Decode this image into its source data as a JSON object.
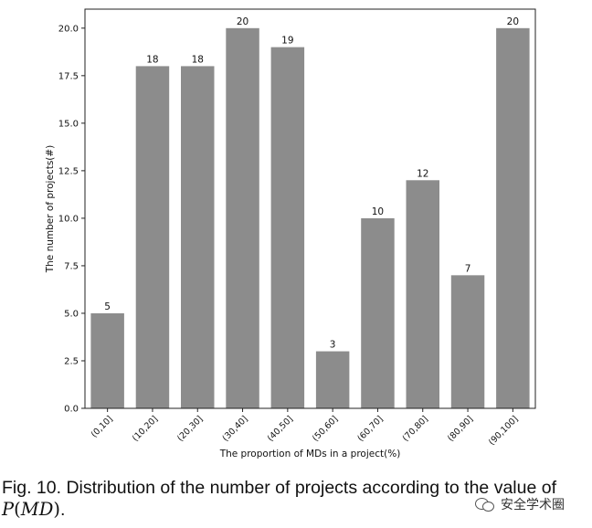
{
  "chart_data": {
    "type": "bar",
    "categories": [
      "(0,10]",
      "(10,20]",
      "(20,30]",
      "(30,40]",
      "(40,50]",
      "(50,60]",
      "(60,70]",
      "(70,80]",
      "(80,90]",
      "(90,100]"
    ],
    "values": [
      5,
      18,
      18,
      20,
      19,
      3,
      10,
      12,
      7,
      20
    ],
    "data_labels": [
      "5",
      "18",
      "18",
      "20",
      "19",
      "3",
      "10",
      "12",
      "7",
      "20"
    ],
    "xlabel": "The proportion of MDs in a project(%)",
    "ylabel": "The number of projects(#)",
    "ylim": [
      0,
      21
    ],
    "yticks": [
      0.0,
      2.5,
      5.0,
      7.5,
      10.0,
      12.5,
      15.0,
      17.5,
      20.0
    ],
    "ytick_labels": [
      "0.0",
      "2.5",
      "5.0",
      "7.5",
      "10.0",
      "12.5",
      "15.0",
      "17.5",
      "20.0"
    ],
    "bar_color": "#8c8c8c",
    "grid": false
  },
  "caption": {
    "prefix": "Fig. 10. Distribution of the number of projects according to the value of",
    "math_letter": "P",
    "math_open": "(",
    "math_arg": "MD",
    "math_close": ")",
    "end": "."
  },
  "watermark": {
    "text": "安全学术圈",
    "icon": "wechat-icon"
  }
}
